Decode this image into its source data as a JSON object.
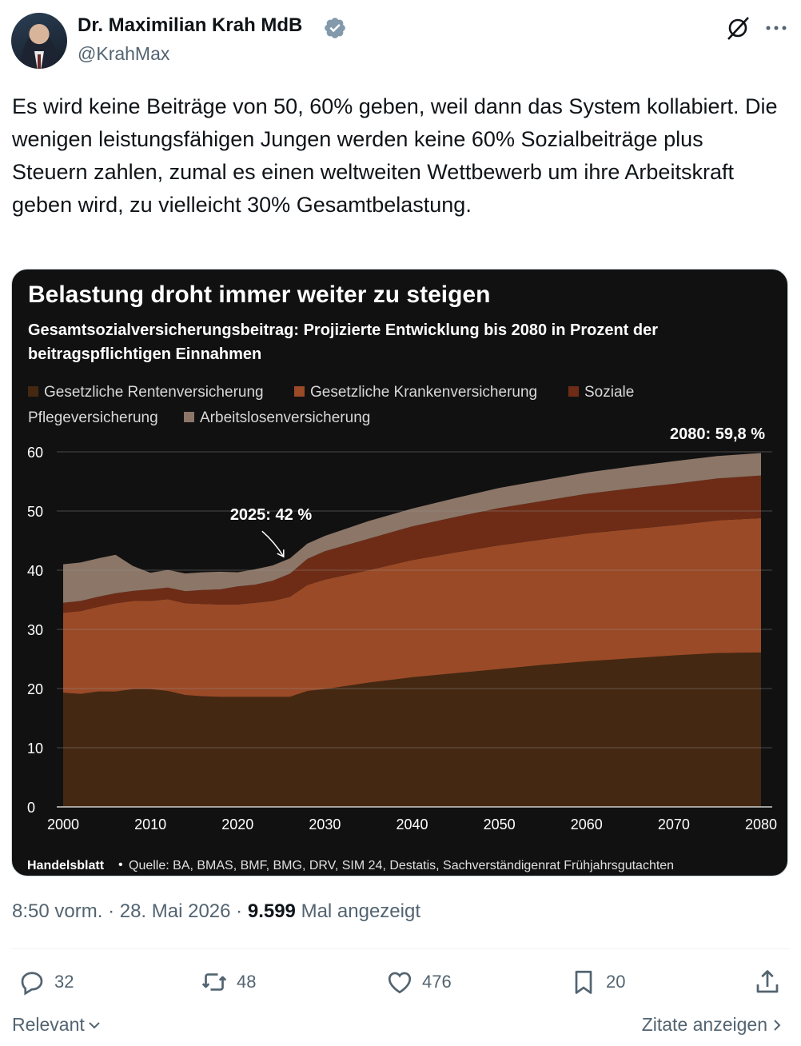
{
  "author": {
    "display_name": "Dr. Maximilian Krah MdB",
    "handle": "@KrahMax"
  },
  "tweet": {
    "text": "Es wird keine Beiträge von 50, 60% geben, weil dann das System kollabiert. Die wenigen leistungsfähigen Jungen werden keine 60% Sozialbeiträge plus Steuern zahlen, zumal es einen weltweiten Wettbewerb um ihre Arbeitskraft geben wird, zu vielleicht 30% Gesamtbelastung."
  },
  "chart_data": {
    "type": "area",
    "title": "Belastung droht immer weiter zu steigen",
    "subtitle_line1": "Gesamtsozialversicherungsbeitrag: Projizierte Entwicklung bis 2080 in Prozent der",
    "subtitle_line2": "beitragspflichtigen Einnahmen",
    "legend": [
      {
        "label": "Gesetzliche Rentenversicherung",
        "color": "#442812"
      },
      {
        "label": "Gesetzliche Krankenversicherung",
        "color": "#9a4a27"
      },
      {
        "label": "Soziale",
        "color": "#6e2c16"
      },
      {
        "label": "Pflegeversicherung",
        "color": "#6e2c16"
      },
      {
        "label": "Arbeitslosenversicherung",
        "color": "#8c7668"
      }
    ],
    "stack_order": [
      "Gesetzliche Rentenversicherung",
      "Gesetzliche Krankenversicherung",
      "Soziale Pflegeversicherung",
      "Arbeitslosenversicherung"
    ],
    "ylim": [
      0,
      60
    ],
    "xlim": [
      2000,
      2080
    ],
    "y_ticks": [
      "0",
      "10",
      "20",
      "30",
      "40",
      "50",
      "60"
    ],
    "x_ticks": [
      "2000",
      "2010",
      "2020",
      "2030",
      "2040",
      "2050",
      "2060",
      "2070",
      "2080"
    ],
    "x": [
      2000,
      2002,
      2004,
      2006,
      2008,
      2010,
      2012,
      2014,
      2016,
      2018,
      2020,
      2022,
      2024,
      2026,
      2028,
      2030,
      2035,
      2040,
      2045,
      2050,
      2055,
      2060,
      2065,
      2070,
      2075,
      2080
    ],
    "series": [
      {
        "name": "Gesetzliche Rentenversicherung",
        "values": [
          19.3,
          19.1,
          19.5,
          19.5,
          19.9,
          19.9,
          19.6,
          18.9,
          18.7,
          18.6,
          18.6,
          18.6,
          18.6,
          18.6,
          19.6,
          19.9,
          21.0,
          21.9,
          22.6,
          23.3,
          24.0,
          24.6,
          25.1,
          25.6,
          26.0,
          26.1
        ]
      },
      {
        "name": "Gesetzliche Krankenversicherung",
        "values": [
          13.5,
          14.0,
          14.3,
          14.9,
          14.9,
          14.9,
          15.5,
          15.5,
          15.6,
          15.6,
          15.6,
          15.9,
          16.2,
          16.9,
          17.9,
          18.5,
          19.0,
          19.8,
          20.4,
          20.9,
          21.2,
          21.6,
          21.8,
          22.0,
          22.4,
          22.7
        ]
      },
      {
        "name": "Soziale Pflegeversicherung",
        "values": [
          1.7,
          1.7,
          1.7,
          1.7,
          1.7,
          1.95,
          1.95,
          2.05,
          2.35,
          2.55,
          3.05,
          3.05,
          3.4,
          3.9,
          4.4,
          4.8,
          5.3,
          5.7,
          6.0,
          6.3,
          6.5,
          6.7,
          6.9,
          7.0,
          7.1,
          7.2
        ]
      },
      {
        "name": "Arbeitslosenversicherung",
        "values": [
          6.5,
          6.5,
          6.5,
          6.5,
          4.2,
          2.8,
          3.0,
          3.0,
          3.0,
          3.0,
          2.4,
          2.6,
          2.6,
          2.6,
          2.6,
          2.6,
          3.0,
          3.0,
          3.2,
          3.4,
          3.5,
          3.6,
          3.7,
          3.8,
          3.8,
          3.8
        ]
      }
    ],
    "annotations": [
      {
        "text": "2025: 42 %",
        "x": 2025,
        "y": 42
      },
      {
        "text": "2080: 59,8 %",
        "x": 2080,
        "y": 59.8
      }
    ],
    "grid": "horizontal",
    "source_brand": "Handelsblatt",
    "source_text": "Quelle: BA, BMAS, BMF, BMG, DRV, SIM 24, Destatis, Sachverständigenrat Frühjahrsgutachten"
  },
  "meta": {
    "time": "8:50 vorm.",
    "date": "28. Mai 2026",
    "views": "9.599",
    "views_label": "Mal angezeigt"
  },
  "actions": {
    "replies": "32",
    "retweets": "48",
    "likes": "476",
    "bookmarks": "20"
  },
  "footer": {
    "sort_label": "Relevant",
    "quotes_label": "Zitate anzeigen"
  },
  "colors": {
    "accent": "#1d9bf0",
    "verified": "#829aab"
  }
}
